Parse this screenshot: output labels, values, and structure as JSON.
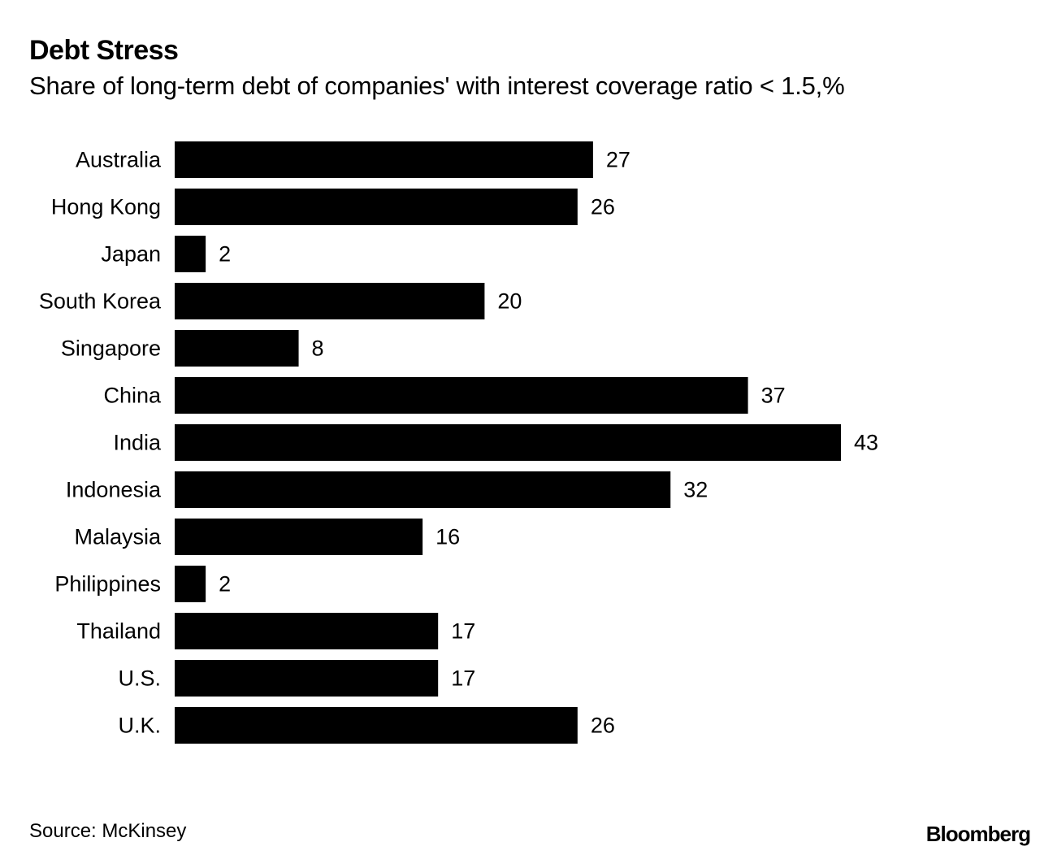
{
  "header": {
    "title": "Debt Stress",
    "subtitle": "Share of long-term debt of companies' with interest coverage ratio < 1.5,%"
  },
  "footer": {
    "source": "Source: McKinsey",
    "brand": "Bloomberg"
  },
  "colors": {
    "bar": "#000000",
    "background": "#ffffff",
    "text": "#000000"
  },
  "chart_data": {
    "type": "bar",
    "orientation": "horizontal",
    "title": "Debt Stress",
    "subtitle": "Share of long-term debt of companies' with interest coverage ratio < 1.5,%",
    "categories": [
      "Australia",
      "Hong Kong",
      "Japan",
      "South Korea",
      "Singapore",
      "China",
      "India",
      "Indonesia",
      "Malaysia",
      "Philippines",
      "Thailand",
      "U.S.",
      "U.K."
    ],
    "values": [
      27,
      26,
      2,
      20,
      8,
      37,
      43,
      32,
      16,
      2,
      17,
      17,
      26
    ],
    "xlim": [
      0,
      43
    ],
    "grid": false,
    "legend": "none",
    "data_labels": true
  }
}
